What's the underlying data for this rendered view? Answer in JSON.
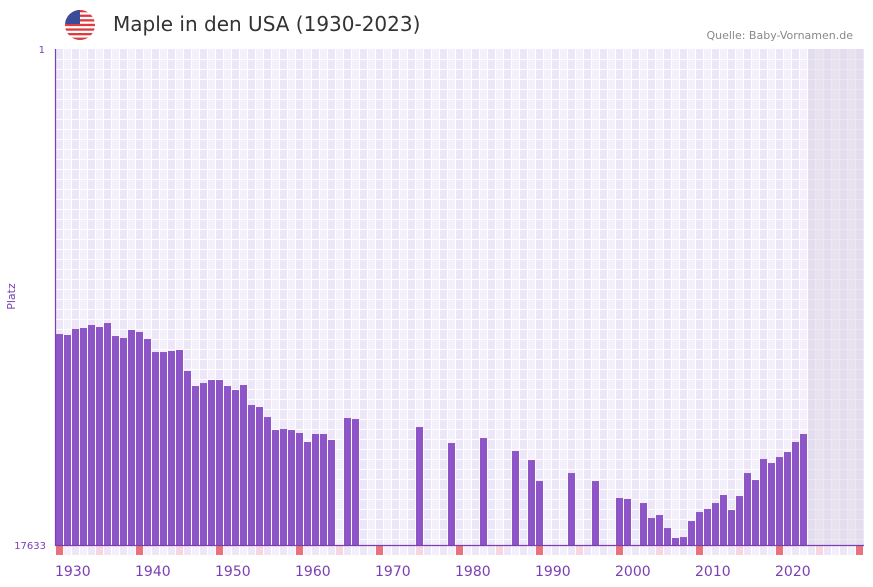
{
  "header": {
    "title": "Maple in den USA (1930-2023)",
    "source": "Quelle: Baby-Vornamen.de",
    "flag_icon": "us-flag-icon"
  },
  "colors": {
    "bar": "#8e55c8",
    "axis": "#7a3fb0",
    "decade_mark": "#e8737b",
    "half_decade_mark": "#f6d6e0",
    "future_shade": "#ddd6e8"
  },
  "chart_data": {
    "type": "bar",
    "title": "Maple in den USA (1930-2023)",
    "xlabel": "",
    "ylabel": "Platz",
    "ylim": [
      17633,
      1
    ],
    "y_ticks": [
      "1",
      "17633"
    ],
    "x_range": [
      1930,
      2030
    ],
    "x_ticks": [
      "1930",
      "1940",
      "1950",
      "1960",
      "1970",
      "1980",
      "1990",
      "2000",
      "2010",
      "2020"
    ],
    "shaded_from": 2024,
    "points": [
      [
        1930,
        10133
      ],
      [
        1931,
        10168
      ],
      [
        1932,
        9955
      ],
      [
        1933,
        9919
      ],
      [
        1934,
        9813
      ],
      [
        1935,
        9884
      ],
      [
        1936,
        9742
      ],
      [
        1937,
        10204
      ],
      [
        1938,
        10275
      ],
      [
        1939,
        9990
      ],
      [
        1940,
        10061
      ],
      [
        1941,
        10311
      ],
      [
        1942,
        10773
      ],
      [
        1943,
        10773
      ],
      [
        1944,
        10737
      ],
      [
        1945,
        10702
      ],
      [
        1946,
        11448
      ],
      [
        1947,
        11982
      ],
      [
        1948,
        11875
      ],
      [
        1949,
        11768
      ],
      [
        1950,
        11768
      ],
      [
        1951,
        11982
      ],
      [
        1952,
        12124
      ],
      [
        1953,
        11946
      ],
      [
        1954,
        12657
      ],
      [
        1955,
        12728
      ],
      [
        1956,
        13084
      ],
      [
        1957,
        13546
      ],
      [
        1958,
        13510
      ],
      [
        1959,
        13546
      ],
      [
        1960,
        13652
      ],
      [
        1961,
        13972
      ],
      [
        1962,
        13688
      ],
      [
        1963,
        13688
      ],
      [
        1964,
        13901
      ],
      [
        1966,
        13119
      ],
      [
        1967,
        13155
      ],
      [
        1975,
        13439
      ],
      [
        1979,
        14008
      ],
      [
        1983,
        13830
      ],
      [
        1987,
        14292
      ],
      [
        1989,
        14612
      ],
      [
        1990,
        15359
      ],
      [
        1994,
        15075
      ],
      [
        1997,
        15359
      ],
      [
        2000,
        15963
      ],
      [
        2001,
        15998
      ],
      [
        2003,
        16141
      ],
      [
        2004,
        16674
      ],
      [
        2005,
        16567
      ],
      [
        2006,
        17030
      ],
      [
        2007,
        17385
      ],
      [
        2008,
        17350
      ],
      [
        2009,
        16781
      ],
      [
        2010,
        16461
      ],
      [
        2011,
        16354
      ],
      [
        2012,
        16141
      ],
      [
        2013,
        15856
      ],
      [
        2014,
        16390
      ],
      [
        2015,
        15892
      ],
      [
        2016,
        15075
      ],
      [
        2017,
        15324
      ],
      [
        2018,
        14577
      ],
      [
        2019,
        14719
      ],
      [
        2020,
        14506
      ],
      [
        2021,
        14328
      ],
      [
        2022,
        13972
      ],
      [
        2023,
        13688
      ]
    ]
  }
}
